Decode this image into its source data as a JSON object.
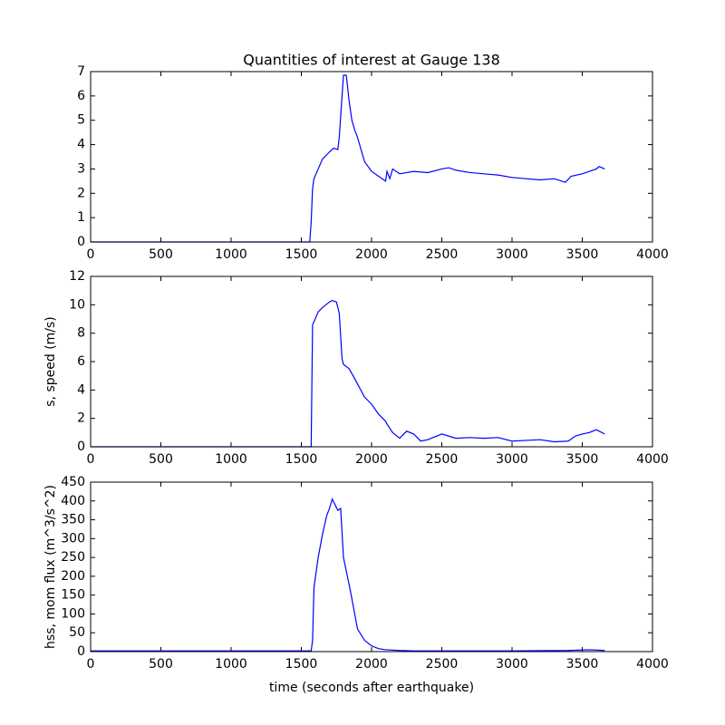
{
  "chart_data": [
    {
      "type": "line",
      "title": "Quantities of interest at Gauge 138",
      "x": [
        0,
        1560,
        1570,
        1580,
        1590,
        1620,
        1650,
        1700,
        1730,
        1760,
        1770,
        1790,
        1800,
        1820,
        1840,
        1860,
        1880,
        1900,
        1950,
        2000,
        2050,
        2100,
        2110,
        2130,
        2150,
        2200,
        2300,
        2400,
        2500,
        2550,
        2600,
        2700,
        2800,
        2900,
        3000,
        3100,
        3200,
        3300,
        3380,
        3420,
        3500,
        3600,
        3620,
        3660
      ],
      "series": [
        {
          "color": "#0000ff",
          "values": [
            0,
            0,
            0.8,
            2.2,
            2.6,
            3.0,
            3.4,
            3.7,
            3.85,
            3.8,
            4.3,
            6.0,
            6.85,
            6.85,
            5.8,
            5.0,
            4.6,
            4.3,
            3.3,
            2.9,
            2.7,
            2.5,
            2.9,
            2.6,
            3.0,
            2.8,
            2.9,
            2.85,
            3.0,
            3.05,
            2.95,
            2.85,
            2.8,
            2.75,
            2.65,
            2.6,
            2.55,
            2.6,
            2.45,
            2.7,
            2.8,
            3.0,
            3.1,
            3.0
          ]
        }
      ],
      "xlim": [
        0,
        4000
      ],
      "xticks": [
        0,
        500,
        1000,
        1500,
        2000,
        2500,
        3000,
        3500,
        4000
      ],
      "ylim": [
        0,
        7
      ],
      "yticks": [
        0,
        1,
        2,
        3,
        4,
        5,
        6,
        7
      ]
    },
    {
      "type": "line",
      "ylabel": "s, speed (m/s)",
      "x": [
        0,
        1570,
        1580,
        1590,
        1620,
        1650,
        1700,
        1720,
        1750,
        1770,
        1790,
        1800,
        1840,
        1880,
        1950,
        2000,
        2050,
        2100,
        2110,
        2150,
        2200,
        2250,
        2300,
        2350,
        2400,
        2500,
        2600,
        2700,
        2800,
        2900,
        3000,
        3100,
        3200,
        3300,
        3400,
        3450,
        3500,
        3550,
        3600,
        3660
      ],
      "series": [
        {
          "color": "#0000ff",
          "values": [
            0,
            0,
            8.6,
            8.8,
            9.5,
            9.8,
            10.2,
            10.3,
            10.2,
            9.4,
            6.2,
            5.8,
            5.5,
            4.8,
            3.5,
            3.0,
            2.3,
            1.8,
            1.6,
            1.0,
            0.6,
            1.1,
            0.9,
            0.4,
            0.5,
            0.9,
            0.6,
            0.65,
            0.6,
            0.65,
            0.4,
            0.45,
            0.5,
            0.35,
            0.4,
            0.75,
            0.9,
            1.0,
            1.2,
            0.9
          ]
        }
      ],
      "xlim": [
        0,
        4000
      ],
      "xticks": [
        0,
        500,
        1000,
        1500,
        2000,
        2500,
        3000,
        3500,
        4000
      ],
      "ylim": [
        0,
        12
      ],
      "yticks": [
        0,
        2,
        4,
        6,
        8,
        10,
        12
      ]
    },
    {
      "type": "line",
      "ylabel": "hss, mom flux (m^3/s^2)",
      "xlabel": "time (seconds after earthquake)",
      "x": [
        0,
        1570,
        1580,
        1590,
        1620,
        1650,
        1680,
        1700,
        1720,
        1740,
        1760,
        1780,
        1800,
        1850,
        1900,
        1950,
        2000,
        2050,
        2100,
        2200,
        2300,
        2500,
        3000,
        3400,
        3550,
        3660
      ],
      "series": [
        {
          "color": "#0000ff",
          "values": [
            2,
            2,
            30,
            170,
            250,
            310,
            360,
            380,
            405,
            390,
            375,
            380,
            250,
            160,
            60,
            30,
            15,
            8,
            5,
            3,
            2,
            2,
            2,
            3,
            5,
            3
          ]
        }
      ],
      "xlim": [
        0,
        4000
      ],
      "xticks": [
        0,
        500,
        1000,
        1500,
        2000,
        2500,
        3000,
        3500,
        4000
      ],
      "ylim": [
        0,
        450
      ],
      "yticks": [
        0,
        50,
        100,
        150,
        200,
        250,
        300,
        350,
        400,
        450
      ]
    }
  ]
}
